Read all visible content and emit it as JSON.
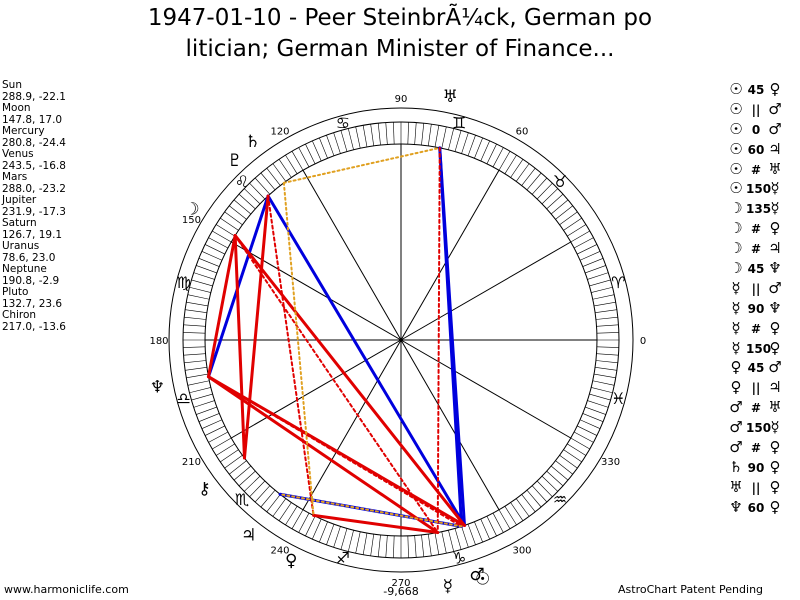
{
  "title": {
    "line1": "1947-01-10 - Peer SteinbrÃ¼ck, German po",
    "line2": "litician; German Minister of Finance..."
  },
  "positions": [
    {
      "name": "Sun",
      "values": "288.9, -22.1"
    },
    {
      "name": "Moon",
      "values": "147.8, 17.0"
    },
    {
      "name": "Mercury",
      "values": "280.8, -24.4"
    },
    {
      "name": "Venus",
      "values": "243.5, -16.8"
    },
    {
      "name": "Mars",
      "values": "288.0, -23.2"
    },
    {
      "name": "Jupiter",
      "values": "231.9, -17.3"
    },
    {
      "name": "Saturn",
      "values": "126.7, 19.1"
    },
    {
      "name": "Uranus",
      "values": "78.6, 23.0"
    },
    {
      "name": "Neptune",
      "values": "190.8, -2.9"
    },
    {
      "name": "Pluto",
      "values": "132.7, 23.6"
    },
    {
      "name": "Chiron",
      "values": "217.0, -13.6"
    }
  ],
  "aspects": [
    {
      "a": "☉",
      "sym": "45",
      "b": "♀"
    },
    {
      "a": "☉",
      "sym": "||",
      "b": "♂"
    },
    {
      "a": "☉",
      "sym": "0",
      "b": "♂"
    },
    {
      "a": "☉",
      "sym": "60",
      "b": "♃"
    },
    {
      "a": "☉",
      "sym": "#",
      "b": "♅"
    },
    {
      "a": "☉",
      "sym": "150",
      "b": "☿"
    },
    {
      "a": "☽",
      "sym": "135",
      "b": "☿"
    },
    {
      "a": "☽",
      "sym": "#",
      "b": "♀"
    },
    {
      "a": "☽",
      "sym": "#",
      "b": "♃"
    },
    {
      "a": "☽",
      "sym": "45",
      "b": "♆"
    },
    {
      "a": "☿",
      "sym": "||",
      "b": "♂"
    },
    {
      "a": "☿",
      "sym": "90",
      "b": "♆"
    },
    {
      "a": "☿",
      "sym": "#",
      "b": "♀"
    },
    {
      "a": "☿",
      "sym": "150",
      "b": "♀"
    },
    {
      "a": "♀",
      "sym": "45",
      "b": "♂"
    },
    {
      "a": "♀",
      "sym": "||",
      "b": "♃"
    },
    {
      "a": "♂",
      "sym": "#",
      "b": "♅"
    },
    {
      "a": "♂",
      "sym": "150",
      "b": "☿"
    },
    {
      "a": "♂",
      "sym": "#",
      "b": "♀"
    },
    {
      "a": "♄",
      "sym": "90",
      "b": "♀"
    },
    {
      "a": "♅",
      "sym": "||",
      "b": "♀"
    },
    {
      "a": "♆",
      "sym": "60",
      "b": "♀"
    }
  ],
  "degree_labels": [
    "90",
    "60",
    "0",
    "330",
    "300",
    "270",
    "240",
    "210",
    "180",
    "150",
    "120"
  ],
  "center_value": "-9,668",
  "footer": {
    "left": "www.harmoniclife.com",
    "right": "AstroChart Patent Pending"
  },
  "colors": {
    "red": "#e00000",
    "blue": "#0000dd",
    "orange": "#e0a020"
  }
}
